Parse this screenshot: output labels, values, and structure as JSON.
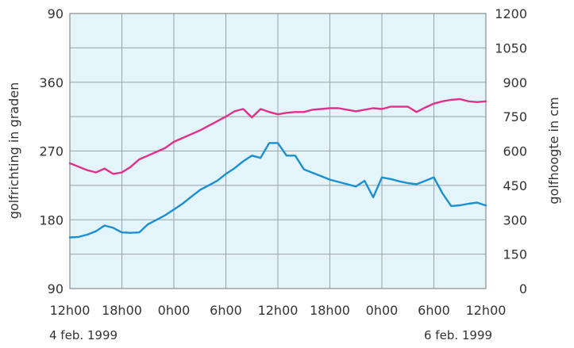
{
  "chart_data": {
    "type": "line",
    "xlabel": "",
    "x_ticks": [
      "12h00",
      "18h00",
      "0h00",
      "6h00",
      "12h00",
      "18h00",
      "0h00",
      "6h00",
      "12h00"
    ],
    "x_dates": [
      "4 feb. 1999",
      "6 feb. 1999"
    ],
    "left_axis": {
      "label": "golfrichting in graden",
      "ticks": [
        "90",
        "360",
        "270",
        "180",
        "90"
      ],
      "tick_values": [
        450,
        360,
        270,
        180,
        90
      ],
      "range": [
        90,
        450
      ]
    },
    "right_axis": {
      "label": "golfhoogte in cm",
      "ticks": [
        "1200",
        "1050",
        "900",
        "750",
        "600",
        "450",
        "300",
        "150",
        "0"
      ],
      "tick_values": [
        1200,
        1050,
        900,
        750,
        600,
        450,
        300,
        150,
        0
      ],
      "range": [
        0,
        1200
      ]
    },
    "x_range_hours": [
      0,
      48
    ],
    "grid": true,
    "series": [
      {
        "axis": "left",
        "color": "#e0318a",
        "x": [
          0,
          2,
          3,
          4,
          5,
          6,
          7,
          8,
          9,
          10,
          11,
          12,
          13,
          14,
          15,
          16,
          17,
          18,
          19,
          20,
          21,
          22,
          23,
          24,
          25,
          26,
          27,
          28,
          29,
          30,
          31,
          32,
          33,
          34,
          35,
          36,
          37,
          38,
          39,
          40,
          41,
          42,
          43,
          44,
          45,
          46,
          47,
          48
        ],
        "y": [
          254,
          245,
          242,
          247,
          240,
          242,
          249,
          259,
          264,
          269,
          274,
          282,
          287,
          292,
          297,
          303,
          309,
          315,
          322,
          325,
          314,
          325,
          321,
          318,
          320,
          321,
          321,
          324,
          325,
          326,
          326,
          324,
          322,
          324,
          326,
          325,
          328,
          328,
          328,
          321,
          327,
          332,
          335,
          337,
          338,
          335,
          334,
          335
        ]
      },
      {
        "axis": "right",
        "color": "#1b8fcf",
        "x": [
          0,
          1,
          2,
          3,
          4,
          5,
          6,
          7,
          8,
          9,
          10,
          11,
          12,
          13,
          14,
          15,
          16,
          17,
          18,
          19,
          20,
          21,
          22,
          23,
          24,
          25,
          26,
          27,
          28,
          29,
          30,
          31,
          32,
          33,
          34,
          35,
          36,
          37,
          38,
          39,
          40,
          41,
          42,
          43,
          44,
          45,
          46,
          47,
          48
        ],
        "y": [
          223,
          225,
          235,
          250,
          275,
          265,
          245,
          243,
          245,
          280,
          300,
          320,
          345,
          370,
          400,
          430,
          450,
          470,
          500,
          525,
          555,
          580,
          570,
          635,
          635,
          580,
          580,
          520,
          505,
          490,
          475,
          465,
          455,
          445,
          470,
          398,
          485,
          478,
          468,
          460,
          455,
          470,
          485,
          415,
          360,
          363,
          370,
          375,
          362
        ]
      }
    ]
  }
}
